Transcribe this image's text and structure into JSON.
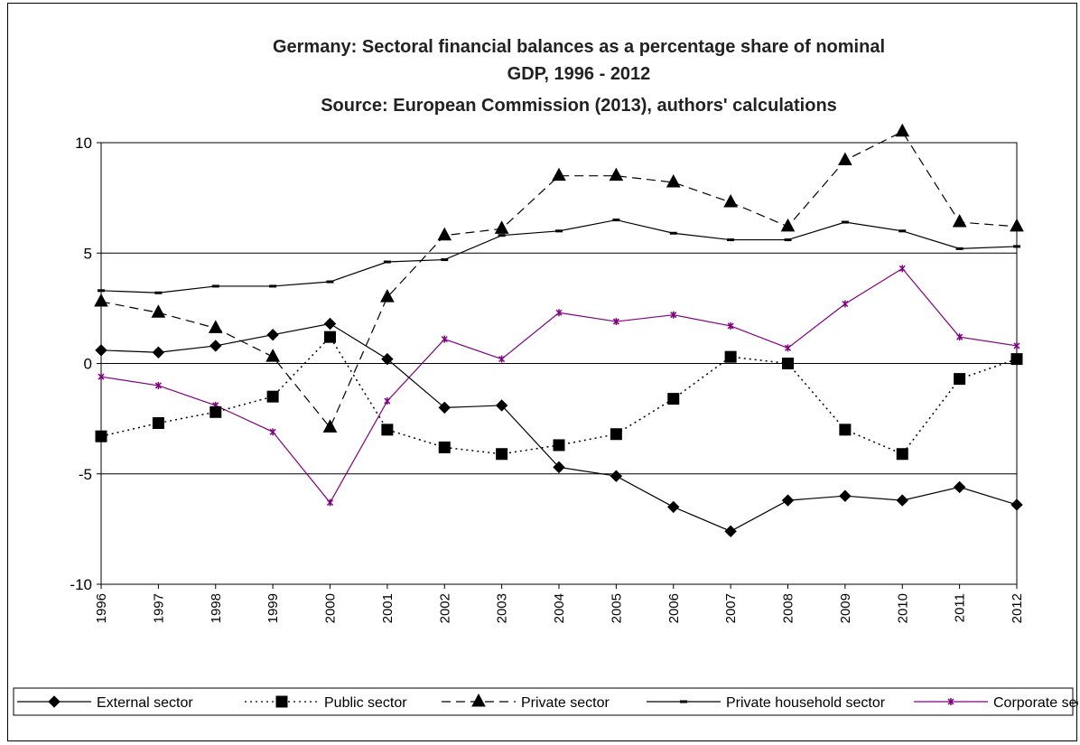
{
  "chart_data": {
    "type": "line",
    "title_lines": [
      "Germany: Sectoral financial balances as a percentage share of nominal",
      "GDP, 1996 - 2012",
      "Source: European Commission (2013), authors' calculations"
    ],
    "xlabel": "",
    "ylabel": "",
    "x": [
      "1996",
      "1997",
      "1998",
      "1999",
      "2000",
      "2001",
      "2002",
      "2003",
      "2004",
      "2005",
      "2006",
      "2007",
      "2008",
      "2009",
      "2010",
      "2011",
      "2012"
    ],
    "ylim": [
      -10,
      10
    ],
    "yticks": [
      "10",
      "5",
      "0",
      "-5",
      "-10"
    ],
    "grid": "horizontal at 5, 0, -5",
    "legend_position": "bottom",
    "series": [
      {
        "name": "External sector",
        "color": "#000000",
        "dash": "solid",
        "marker": "diamond",
        "values": [
          0.6,
          0.5,
          0.8,
          1.3,
          1.8,
          0.2,
          -2.0,
          -1.9,
          -4.7,
          -5.1,
          -6.5,
          -7.6,
          -6.2,
          -6.0,
          -6.2,
          -5.6,
          -6.4
        ]
      },
      {
        "name": "Public sector",
        "color": "#000000",
        "dash": "dotted",
        "marker": "square",
        "values": [
          -3.3,
          -2.7,
          -2.2,
          -1.5,
          1.2,
          -3.0,
          -3.8,
          -4.1,
          -3.7,
          -3.2,
          -1.6,
          0.3,
          0.0,
          -3.0,
          -4.1,
          -0.7,
          0.2
        ]
      },
      {
        "name": "Private sector",
        "color": "#000000",
        "dash": "dashed",
        "marker": "triangle",
        "values": [
          2.8,
          2.3,
          1.6,
          0.3,
          -2.9,
          3.0,
          5.8,
          6.1,
          8.5,
          8.5,
          8.2,
          7.3,
          6.2,
          9.2,
          10.5,
          6.4,
          6.2
        ]
      },
      {
        "name": "Private household sector",
        "color": "#000000",
        "dash": "solid",
        "marker": "dash",
        "values": [
          3.3,
          3.2,
          3.5,
          3.5,
          3.7,
          4.6,
          4.7,
          5.8,
          6.0,
          6.5,
          5.9,
          5.6,
          5.6,
          6.4,
          6.0,
          5.2,
          5.3
        ]
      },
      {
        "name": "Corporate sector",
        "color": "#800080",
        "dash": "solid",
        "marker": "star",
        "values": [
          -0.6,
          -1.0,
          -1.9,
          -3.1,
          -6.3,
          -1.7,
          1.1,
          0.2,
          2.3,
          1.9,
          2.2,
          1.7,
          0.7,
          2.7,
          4.3,
          1.2,
          0.8
        ]
      }
    ]
  }
}
